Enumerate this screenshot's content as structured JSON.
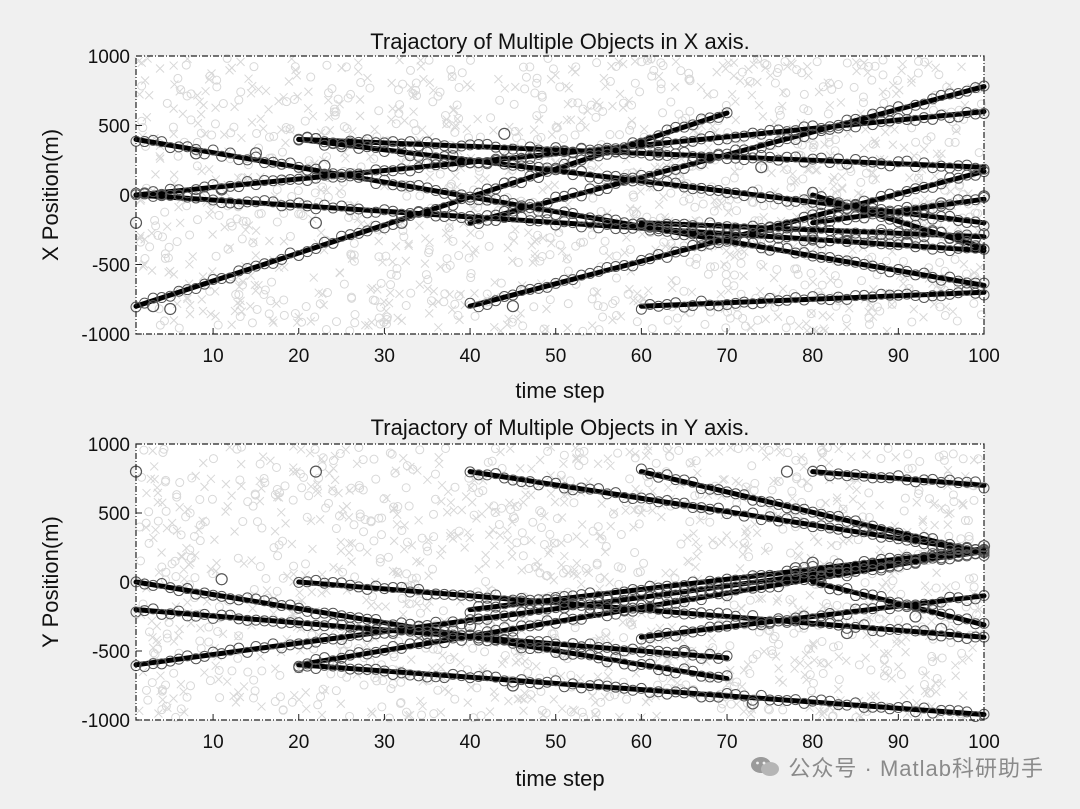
{
  "watermark": {
    "text": "公众号 · Matlab科研助手"
  },
  "colors": {
    "track": "#000000",
    "marker": "#555555",
    "noise": "#d8d8d8",
    "background": "#f0f0f0"
  },
  "chart_data": [
    {
      "type": "line",
      "title": "Trajactory of Multiple Objects in X axis.",
      "xlabel": "time step",
      "ylabel": "X Position(m)",
      "xlim": [
        1,
        100
      ],
      "ylim": [
        -1000,
        1000
      ],
      "xticks": [
        10,
        20,
        30,
        40,
        50,
        60,
        70,
        80,
        90,
        100
      ],
      "yticks": [
        1000,
        500,
        0,
        -500,
        -1000
      ],
      "tick_labels_x": [
        "10",
        "20",
        "30",
        "40",
        "50",
        "60",
        "70",
        "80",
        "90",
        "100"
      ],
      "tick_labels_y": [
        "1000",
        "500",
        "0",
        "-500",
        "-1000"
      ],
      "grid": false,
      "series": [
        {
          "t": [
            1,
            100
          ],
          "y": [
            400,
            -650
          ]
        },
        {
          "t": [
            1,
            100
          ],
          "y": [
            0,
            -400
          ]
        },
        {
          "t": [
            1,
            70
          ],
          "y": [
            -800,
            590
          ]
        },
        {
          "t": [
            1,
            100
          ],
          "y": [
            0,
            600
          ]
        },
        {
          "t": [
            20,
            100
          ],
          "y": [
            400,
            200
          ]
        },
        {
          "t": [
            20,
            100
          ],
          "y": [
            400,
            -200
          ]
        },
        {
          "t": [
            40,
            100
          ],
          "y": [
            -200,
            780
          ]
        },
        {
          "t": [
            40,
            100
          ],
          "y": [
            -800,
            170
          ]
        },
        {
          "t": [
            60,
            100
          ],
          "y": [
            -200,
            -300
          ]
        },
        {
          "t": [
            60,
            100
          ],
          "y": [
            -800,
            -700
          ]
        },
        {
          "t": [
            80,
            100
          ],
          "y": [
            -200,
            -30
          ]
        },
        {
          "t": [
            80,
            100
          ],
          "y": [
            0,
            -380
          ]
        }
      ],
      "outliers": [
        [
          1,
          -200
        ],
        [
          3,
          -800
        ],
        [
          5,
          -820
        ],
        [
          8,
          300
        ],
        [
          11,
          40
        ],
        [
          15,
          300
        ],
        [
          22,
          -200
        ],
        [
          23,
          210
        ],
        [
          32,
          -200
        ],
        [
          44,
          440
        ],
        [
          45,
          -800
        ],
        [
          62,
          290
        ],
        [
          74,
          200
        ],
        [
          80,
          -310
        ],
        [
          84,
          -330
        ],
        [
          88,
          -280
        ],
        [
          91,
          -340
        ],
        [
          95,
          -60
        ],
        [
          100,
          -10
        ]
      ]
    },
    {
      "type": "line",
      "title": "Trajactory of Multiple Objects in Y axis.",
      "xlabel": "time step",
      "ylabel": "Y Position(m)",
      "xlim": [
        1,
        100
      ],
      "ylim": [
        -1000,
        1000
      ],
      "xticks": [
        10,
        20,
        30,
        40,
        50,
        60,
        70,
        80,
        90,
        100
      ],
      "yticks": [
        1000,
        500,
        0,
        -500,
        -1000
      ],
      "tick_labels_x": [
        "10",
        "20",
        "30",
        "40",
        "50",
        "60",
        "70",
        "80",
        "90",
        "100"
      ],
      "tick_labels_y": [
        "1000",
        "500",
        "0",
        "-500",
        "-1000"
      ],
      "grid": false,
      "series": [
        {
          "t": [
            1,
            70
          ],
          "y": [
            0,
            -700
          ]
        },
        {
          "t": [
            1,
            70
          ],
          "y": [
            -200,
            -550
          ]
        },
        {
          "t": [
            1,
            100
          ],
          "y": [
            -600,
            220
          ]
        },
        {
          "t": [
            20,
            100
          ],
          "y": [
            0,
            -400
          ]
        },
        {
          "t": [
            20,
            100
          ],
          "y": [
            -600,
            -960
          ]
        },
        {
          "t": [
            20,
            100
          ],
          "y": [
            -600,
            230
          ]
        },
        {
          "t": [
            40,
            100
          ],
          "y": [
            800,
            220
          ]
        },
        {
          "t": [
            40,
            100
          ],
          "y": [
            -200,
            240
          ]
        },
        {
          "t": [
            60,
            100
          ],
          "y": [
            800,
            210
          ]
        },
        {
          "t": [
            60,
            100
          ],
          "y": [
            -400,
            -100
          ]
        },
        {
          "t": [
            80,
            100
          ],
          "y": [
            800,
            700
          ]
        },
        {
          "t": [
            80,
            100
          ],
          "y": [
            0,
            -310
          ]
        }
      ],
      "outliers": [
        [
          1,
          800
        ],
        [
          11,
          20
        ],
        [
          22,
          800
        ],
        [
          40,
          -320
        ],
        [
          45,
          -750
        ],
        [
          65,
          -500
        ],
        [
          73,
          -880
        ],
        [
          77,
          800
        ],
        [
          78,
          100
        ],
        [
          80,
          140
        ],
        [
          84,
          -370
        ],
        [
          92,
          -250
        ],
        [
          95,
          -340
        ],
        [
          100,
          260
        ]
      ]
    }
  ]
}
